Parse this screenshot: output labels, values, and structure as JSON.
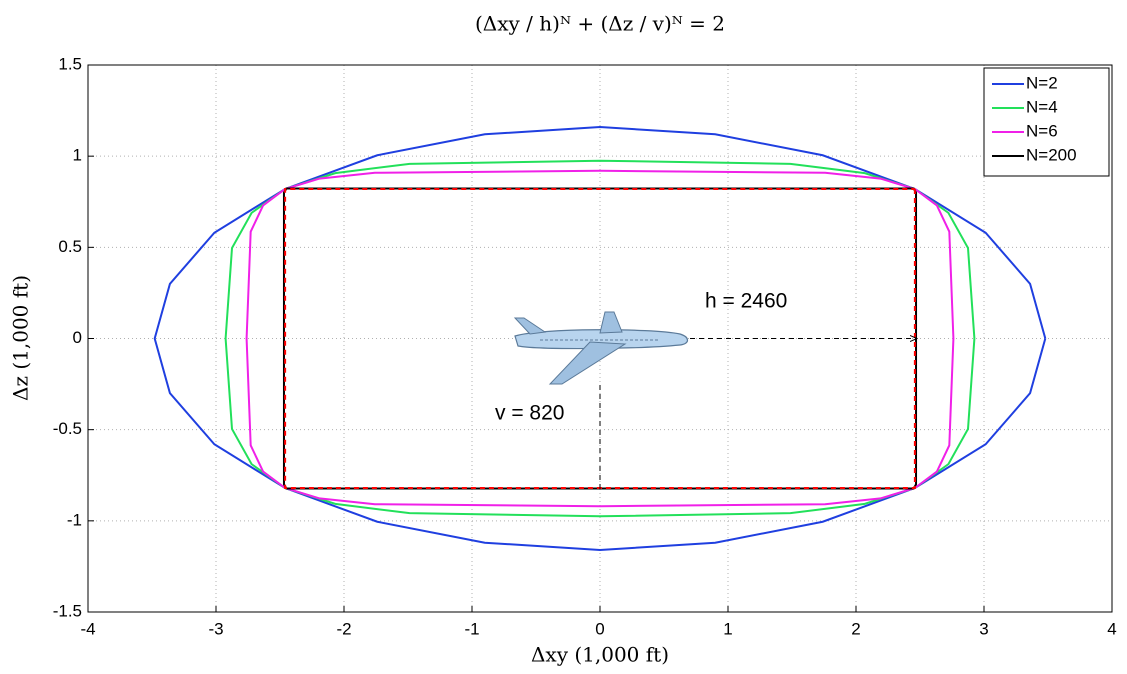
{
  "chart_data": {
    "type": "line",
    "title": "(Δxy / h)ᴺ + (Δz / v)ᴺ = 2",
    "x_label": "Δxy (1,000 ft)",
    "y_label": "Δz (1,000 ft)",
    "xlim": [
      -4,
      4
    ],
    "xticks": [
      -4,
      -3,
      -2,
      -1,
      0,
      1,
      2,
      3,
      4
    ],
    "ylim": [
      -1.5,
      1.5
    ],
    "yticks": [
      -1.5,
      -1,
      -0.5,
      0,
      0.5,
      1,
      1.5
    ],
    "grid": true,
    "legend": "upper right",
    "series": [
      {
        "name": "N=2",
        "color": "#1f3fe0",
        "x": [
          3.479,
          3.36,
          3.013,
          2.46,
          1.74,
          0.9,
          0,
          -0.9,
          -1.74,
          -2.46,
          -3.013,
          -3.36,
          -3.479,
          -3.36,
          -3.013,
          -2.46,
          -1.74,
          -0.9,
          0,
          0.9,
          1.74,
          2.46,
          3.013,
          3.36,
          3.479
        ],
        "values": [
          0,
          0.3,
          0.58,
          0.82,
          1.005,
          1.12,
          1.16,
          1.12,
          1.005,
          0.82,
          0.58,
          0.3,
          0,
          -0.3,
          -0.58,
          -0.82,
          -1.005,
          -1.12,
          -1.16,
          -1.12,
          -1.005,
          -0.82,
          -0.58,
          -0.3,
          0
        ]
      },
      {
        "name": "N=4",
        "color": "#22e05a",
        "x": [
          2.925,
          2.875,
          2.722,
          2.46,
          2.068,
          1.488,
          0,
          -1.488,
          -2.068,
          -2.46,
          -2.722,
          -2.875,
          -2.925,
          -2.875,
          -2.722,
          -2.46,
          -2.068,
          -1.488,
          0,
          1.488,
          2.068,
          2.46,
          2.722,
          2.875,
          2.925
        ],
        "values": [
          0,
          0.496,
          0.689,
          0.82,
          0.907,
          0.958,
          0.975,
          0.958,
          0.907,
          0.82,
          0.689,
          0.496,
          0,
          -0.496,
          -0.689,
          -0.82,
          -0.907,
          -0.958,
          -0.975,
          -0.958,
          -0.907,
          -0.82,
          -0.689,
          -0.496,
          0
        ]
      },
      {
        "name": "N=6",
        "color": "#f020e8",
        "x": [
          2.761,
          2.729,
          2.632,
          2.46,
          2.191,
          1.759,
          0,
          -1.759,
          -2.191,
          -2.46,
          -2.632,
          -2.729,
          -2.761,
          -2.729,
          -2.632,
          -2.46,
          -2.191,
          -1.759,
          0,
          1.759,
          2.191,
          2.46,
          2.632,
          2.729,
          2.761
        ],
        "values": [
          0,
          0.586,
          0.73,
          0.82,
          0.877,
          0.909,
          0.92,
          0.909,
          0.877,
          0.82,
          0.73,
          0.586,
          0,
          -0.586,
          -0.73,
          -0.82,
          -0.877,
          -0.909,
          -0.92,
          -0.909,
          -0.877,
          -0.82,
          -0.73,
          -0.586,
          0
        ]
      },
      {
        "name": "N=200",
        "color": "#000000",
        "x": [
          2.469,
          2.469,
          2.45,
          0,
          -2.45,
          -2.469,
          -2.469,
          -2.45,
          0,
          2.45,
          2.469,
          2.469
        ],
        "values": [
          0,
          0.8,
          0.823,
          0.823,
          0.823,
          0.8,
          -0.8,
          -0.823,
          -0.823,
          -0.823,
          -0.8,
          0
        ]
      }
    ],
    "boundary": {
      "color": "#ff0000",
      "x": [
        2.46,
        2.46,
        -2.46,
        -2.46,
        2.46
      ],
      "values": [
        0.82,
        -0.82,
        -0.82,
        0.82,
        0.82
      ]
    },
    "annotations": [
      "h = 2460",
      "v = 820"
    ]
  }
}
